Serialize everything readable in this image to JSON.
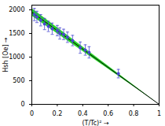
{
  "chart_data": {
    "type": "scatter",
    "xlabel": "(T/Tc)²",
    "ylabel": "Hsh [Oe]",
    "xlim": [
      0,
      1
    ],
    "ylim": [
      0,
      2100
    ],
    "xticks": [
      0,
      0.2,
      0.4,
      0.6,
      0.8,
      1
    ],
    "yticks": [
      0,
      500,
      1000,
      1500,
      2000
    ],
    "grid": false,
    "series": [
      {
        "type": "band",
        "color": "#00cc00",
        "x": [
          0,
          1
        ],
        "lower": [
          1870,
          0
        ],
        "upper": [
          2030,
          0
        ]
      },
      {
        "type": "line",
        "color": "#000000",
        "line_style": "solid",
        "x": [
          0,
          1
        ],
        "values": [
          1950,
          0
        ]
      },
      {
        "type": "scatter",
        "color": "#4a4ad0",
        "marker": "circle",
        "x": [
          0.02,
          0.04,
          0.07,
          0.1,
          0.13,
          0.16,
          0.2,
          0.22,
          0.25,
          0.28,
          0.32,
          0.38,
          0.42,
          0.45,
          0.68
        ],
        "values": [
          1900,
          1850,
          1780,
          1700,
          1650,
          1600,
          1560,
          1500,
          1480,
          1420,
          1350,
          1200,
          1150,
          1100,
          650
        ],
        "error": [
          130,
          120,
          120,
          120,
          110,
          120,
          110,
          120,
          110,
          110,
          110,
          120,
          110,
          120,
          90
        ]
      }
    ]
  }
}
